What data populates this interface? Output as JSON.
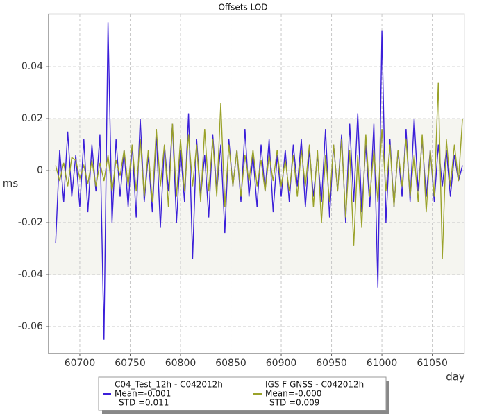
{
  "chart_data": {
    "type": "line",
    "title": "Offsets LOD",
    "ylabel": "ms",
    "xlabel": "day",
    "x": [
      60676,
      60680,
      60684,
      60688,
      60692,
      60696,
      60700,
      60704,
      60708,
      60712,
      60716,
      60720,
      60724,
      60728,
      60732,
      60736,
      60740,
      60744,
      60748,
      60752,
      60756,
      60760,
      60764,
      60768,
      60772,
      60776,
      60780,
      60784,
      60788,
      60792,
      60796,
      60800,
      60804,
      60808,
      60812,
      60816,
      60820,
      60824,
      60828,
      60832,
      60836,
      60840,
      60844,
      60848,
      60852,
      60856,
      60860,
      60864,
      60868,
      60872,
      60876,
      60880,
      60884,
      60888,
      60892,
      60896,
      60900,
      60904,
      60908,
      60912,
      60916,
      60920,
      60924,
      60928,
      60932,
      60936,
      60940,
      60944,
      60948,
      60952,
      60956,
      60960,
      60964,
      60968,
      60972,
      60976,
      60980,
      60984,
      60988,
      60992,
      60996,
      61000,
      61004,
      61008,
      61012,
      61016,
      61020,
      61024,
      61028,
      61032,
      61036,
      61040,
      61044,
      61048,
      61052,
      61056,
      61060,
      61064,
      61068,
      61072,
      61076,
      61080
    ],
    "series": [
      {
        "name": "C04_Test_12h - C042012h",
        "stats": [
          "Mean=-0.001",
          "STD =0.011"
        ],
        "color": "#3b1fd9",
        "values": [
          -0.028,
          0.008,
          -0.012,
          0.015,
          -0.01,
          0.006,
          -0.014,
          0.012,
          -0.016,
          0.01,
          -0.008,
          0.014,
          -0.065,
          0.057,
          -0.02,
          0.012,
          -0.01,
          0.008,
          -0.014,
          0.01,
          -0.018,
          0.02,
          -0.012,
          0.006,
          -0.016,
          0.014,
          -0.022,
          0.01,
          -0.008,
          0.018,
          -0.02,
          0.008,
          -0.012,
          0.022,
          -0.034,
          0.012,
          -0.01,
          0.006,
          -0.018,
          0.014,
          -0.008,
          0.01,
          -0.024,
          0.012,
          -0.006,
          0.008,
          -0.012,
          0.016,
          -0.01,
          0.006,
          -0.014,
          0.01,
          -0.008,
          0.012,
          -0.016,
          0.006,
          -0.01,
          0.008,
          -0.012,
          0.01,
          -0.006,
          0.012,
          -0.014,
          0.008,
          -0.01,
          0.006,
          -0.012,
          0.016,
          -0.018,
          0.01,
          -0.008,
          0.014,
          -0.02,
          0.018,
          -0.012,
          0.022,
          -0.016,
          0.01,
          -0.014,
          0.018,
          -0.045,
          0.054,
          -0.02,
          0.012,
          -0.014,
          0.008,
          -0.01,
          0.016,
          -0.012,
          0.02,
          -0.008,
          0.012,
          -0.01,
          0.008,
          -0.012,
          0.01,
          -0.006,
          0.008,
          -0.01,
          0.006,
          -0.004,
          0.002
        ]
      },
      {
        "name": "IGS F GNSS - C042012h",
        "stats": [
          "Mean=-0.000",
          "STD =0.009"
        ],
        "color": "#9aa229",
        "values": [
          0.002,
          -0.004,
          0.003,
          -0.006,
          0.005,
          0.004,
          -0.003,
          0.002,
          -0.005,
          0.004,
          -0.006,
          0.003,
          -0.004,
          0.006,
          -0.008,
          0.004,
          -0.002,
          0.008,
          -0.006,
          0.01,
          -0.008,
          0.012,
          -0.01,
          0.008,
          -0.012,
          0.016,
          -0.006,
          0.01,
          -0.014,
          0.018,
          -0.01,
          0.012,
          -0.008,
          0.014,
          -0.006,
          0.01,
          -0.012,
          0.016,
          -0.008,
          0.012,
          -0.01,
          0.026,
          -0.014,
          0.01,
          -0.006,
          0.008,
          -0.01,
          0.006,
          -0.004,
          0.008,
          -0.006,
          0.004,
          -0.008,
          0.006,
          -0.004,
          0.008,
          -0.006,
          0.004,
          -0.008,
          0.006,
          -0.01,
          0.008,
          -0.006,
          0.01,
          -0.014,
          0.008,
          -0.02,
          0.006,
          -0.012,
          0.01,
          -0.008,
          0.012,
          -0.018,
          0.008,
          -0.029,
          0.006,
          -0.022,
          0.014,
          -0.01,
          0.008,
          -0.012,
          0.016,
          -0.008,
          0.01,
          -0.014,
          0.008,
          -0.006,
          0.012,
          -0.01,
          0.006,
          -0.012,
          0.014,
          -0.016,
          0.008,
          -0.01,
          0.034,
          -0.034,
          0.012,
          -0.006,
          0.01,
          -0.004,
          0.02
        ]
      }
    ],
    "xlim": [
      60669,
      61082
    ],
    "ylim": [
      -0.0704,
      0.0603
    ],
    "xticks": [
      60700,
      60750,
      60800,
      60850,
      60900,
      60950,
      61000,
      61050
    ],
    "yticks": [
      -0.06,
      -0.04,
      -0.02,
      0,
      0.02,
      0.04
    ],
    "shaded_range": [
      -0.04,
      0.02
    ],
    "grid": true
  }
}
